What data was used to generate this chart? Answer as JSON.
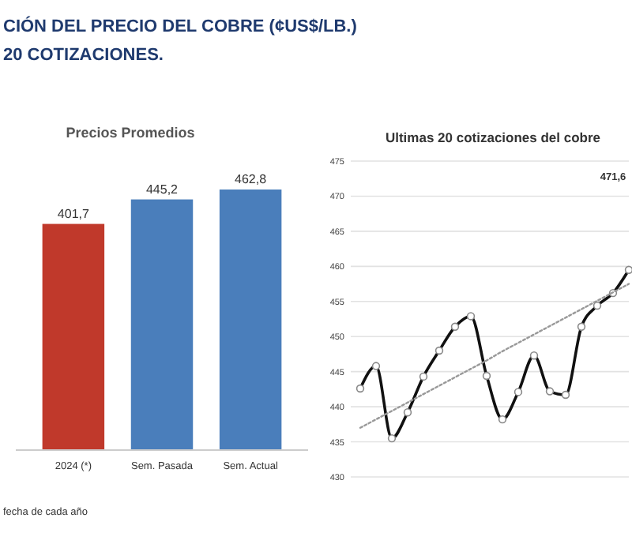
{
  "chart_data": [
    {
      "type": "bar",
      "title": "Precios Promedios",
      "categories": [
        "2024 (*)",
        "Sem. Pasada",
        "Sem. Actual"
      ],
      "values": [
        401.7,
        445.2,
        462.8
      ],
      "value_labels": [
        "401,7",
        "445,2",
        "462,8"
      ],
      "colors": [
        "#c0392b",
        "#4a7ebb",
        "#4a7ebb"
      ],
      "annotations": [
        "CIÓN DEL PRECIO DEL COBRE (¢US$/LB.)",
        "20 COTIZACIONES.",
        "fecha de cada año"
      ]
    },
    {
      "type": "line",
      "title": "Ultimas 20 cotizaciones del cobre",
      "categories": [
        null,
        null,
        null,
        null,
        null,
        null,
        null,
        null,
        null,
        null,
        null,
        null,
        null,
        null,
        null,
        null,
        null,
        null
      ],
      "ylim": [
        430,
        475
      ],
      "yticks": [
        430,
        435,
        440,
        445,
        450,
        455,
        460,
        465,
        470,
        475
      ],
      "grid": "y",
      "annotations": [
        "471,6"
      ],
      "series": [
        {
          "color": "#111111",
          "marker": "circle",
          "line_style": "solid",
          "values": [
            442.6,
            445.8,
            435.5,
            439.2,
            444.3,
            448.0,
            451.4,
            452.9,
            444.4,
            438.2,
            442.1,
            447.3,
            442.2,
            441.7,
            451.4,
            454.4,
            456.2,
            459.5
          ]
        },
        {
          "color": "#999999",
          "marker": "none",
          "line_style": "dotted",
          "values": [
            437.0,
            438.2,
            439.4,
            440.6,
            441.8,
            443.0,
            444.2,
            445.4,
            446.6,
            447.9,
            449.1,
            450.3,
            451.5,
            452.7,
            453.9,
            455.1,
            456.3,
            457.5
          ]
        }
      ]
    }
  ]
}
